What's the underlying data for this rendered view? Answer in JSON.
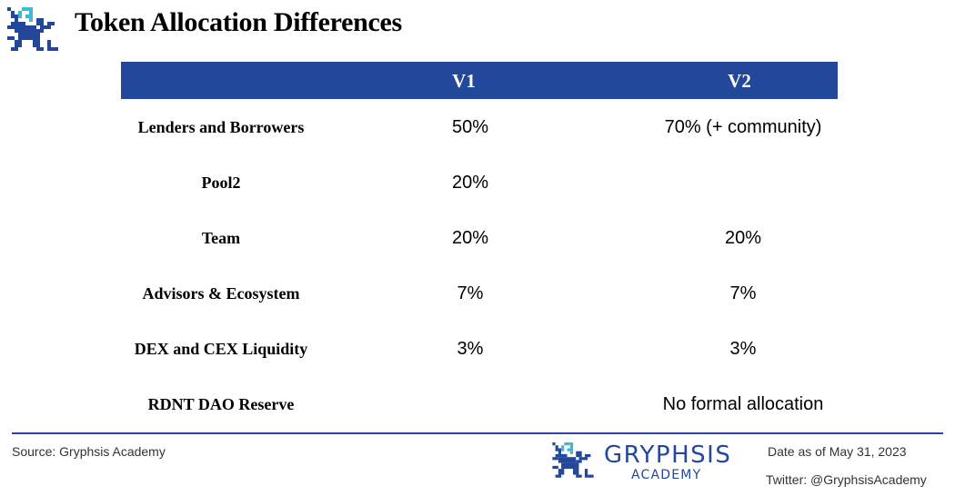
{
  "header": {
    "title": "Token Allocation Differences"
  },
  "table": {
    "columns": [
      "",
      "V1",
      "V2"
    ],
    "rows": [
      {
        "label": "Lenders and Borrowers",
        "v1": "50%",
        "v2": "70% (+ community)"
      },
      {
        "label": "Pool2",
        "v1": "20%",
        "v2": ""
      },
      {
        "label": "Team",
        "v1": "20%",
        "v2": "20%"
      },
      {
        "label": "Advisors & Ecosystem",
        "v1": "7%",
        "v2": "7%"
      },
      {
        "label": "DEX and CEX Liquidity",
        "v1": "3%",
        "v2": "3%"
      },
      {
        "label": "RDNT DAO Reserve",
        "v1": "",
        "v2": "No formal allocation"
      }
    ]
  },
  "footer": {
    "source": "Source: Gryphsis Academy",
    "brand_name": "GRYPHSIS",
    "brand_sub": "ACADEMY",
    "date": "Date as of May 31, 2023",
    "twitter": "Twitter: @GryphsisAcademy"
  },
  "colors": {
    "accent": "#23479b",
    "logo_light": "#3fb8d8"
  },
  "icons": {
    "logo": "gryphon-logo-icon"
  }
}
